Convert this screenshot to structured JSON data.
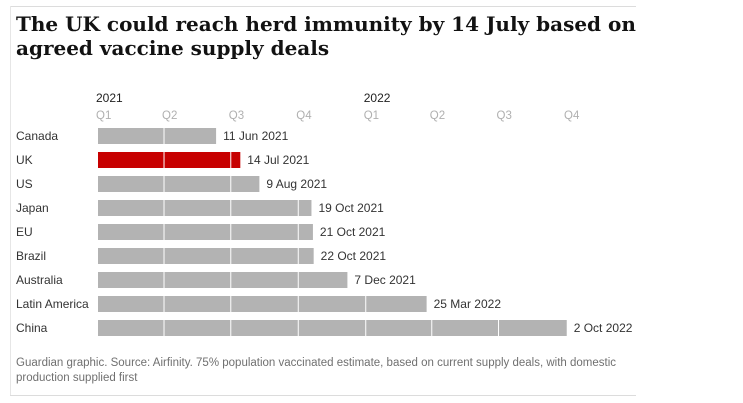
{
  "title": "The UK could reach herd immunity by 14 July based on agreed vaccine supply deals",
  "source": "Guardian graphic. Source: Airfinity. 75% population vaccinated estimate, based on current supply deals, with domestic production supplied first",
  "chart_data": {
    "type": "bar",
    "orientation": "horizontal",
    "categories": [
      "Canada",
      "UK",
      "US",
      "Japan",
      "EU",
      "Brazil",
      "Australia",
      "Latin America",
      "China"
    ],
    "values": [
      "2021-06-11",
      "2021-07-14",
      "2021-08-09",
      "2021-10-19",
      "2021-10-21",
      "2021-10-22",
      "2021-12-07",
      "2022-03-25",
      "2022-10-02"
    ],
    "labels": [
      "11 Jun 2021",
      "14 Jul 2021",
      "9 Aug 2021",
      "19 Oct 2021",
      "21 Oct 2021",
      "22 Oct 2021",
      "7 Dec 2021",
      "25 Mar 2022",
      "2 Oct 2022"
    ],
    "highlight": "UK",
    "colors": {
      "bar": "#b3b3b3",
      "highlight": "#c70000",
      "divider": "#ffffff",
      "axis_text": "#b0b0b0",
      "year_text": "#222222",
      "label_text": "#333333"
    },
    "x_axis": {
      "years": [
        {
          "label": "2021",
          "date": "2021-01-01"
        },
        {
          "label": "2022",
          "date": "2022-01-01"
        }
      ],
      "ticks": [
        {
          "label": "Q1",
          "date": "2021-01-01"
        },
        {
          "label": "Q2",
          "date": "2021-04-01"
        },
        {
          "label": "Q3",
          "date": "2021-07-01"
        },
        {
          "label": "Q4",
          "date": "2021-10-01"
        },
        {
          "label": "Q1",
          "date": "2022-01-01"
        },
        {
          "label": "Q2",
          "date": "2022-04-01"
        },
        {
          "label": "Q3",
          "date": "2022-07-01"
        },
        {
          "label": "Q4",
          "date": "2022-10-01"
        }
      ],
      "xlim": [
        "2021-01-01",
        "2022-10-01"
      ]
    },
    "grid": false
  }
}
